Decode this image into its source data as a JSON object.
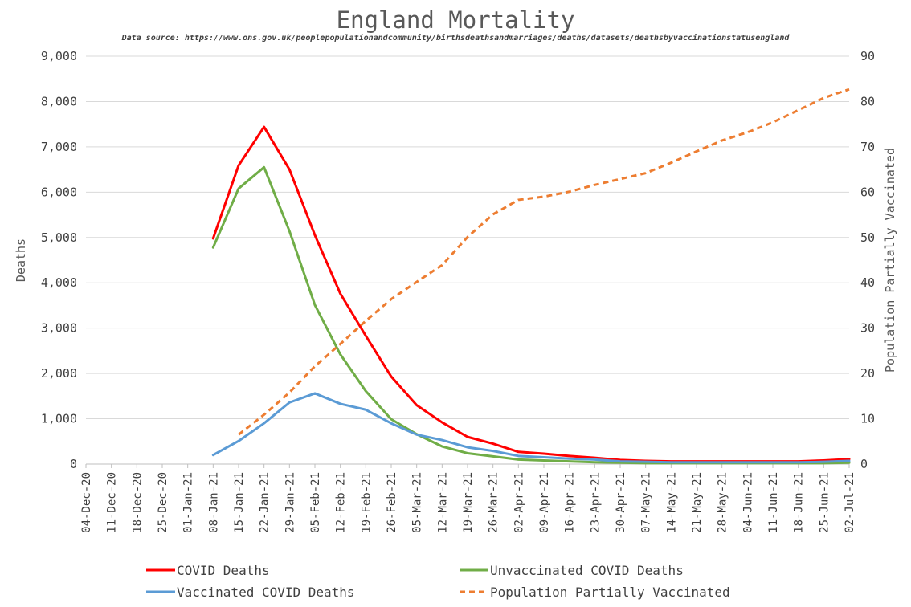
{
  "chart_data": {
    "type": "line",
    "title": "England Mortality",
    "subtitle": "Data source: https://www.ons.gov.uk/peoplepopulationandcommunity/birthsdeathsandmarriages/deaths/datasets/deathsbyvaccinationstatusengland",
    "ylabel": "Deaths",
    "y2label": "Population Partially Vaccinated",
    "ylim": [
      0,
      9000
    ],
    "y2lim": [
      0,
      90
    ],
    "yticks": [
      "0",
      "1,000",
      "2,000",
      "3,000",
      "4,000",
      "5,000",
      "6,000",
      "7,000",
      "8,000",
      "9,000"
    ],
    "y2ticks": [
      "0",
      "10",
      "20",
      "30",
      "40",
      "50",
      "60",
      "70",
      "80",
      "90"
    ],
    "categories": [
      "04-Dec-20",
      "11-Dec-20",
      "18-Dec-20",
      "25-Dec-20",
      "01-Jan-21",
      "08-Jan-21",
      "15-Jan-21",
      "22-Jan-21",
      "29-Jan-21",
      "05-Feb-21",
      "12-Feb-21",
      "19-Feb-21",
      "26-Feb-21",
      "05-Mar-21",
      "12-Mar-21",
      "19-Mar-21",
      "26-Mar-21",
      "02-Apr-21",
      "09-Apr-21",
      "16-Apr-21",
      "23-Apr-21",
      "30-Apr-21",
      "07-May-21",
      "14-May-21",
      "21-May-21",
      "28-May-21",
      "04-Jun-21",
      "11-Jun-21",
      "18-Jun-21",
      "25-Jun-21",
      "02-Jul-21"
    ],
    "series": [
      {
        "name": "COVID Deaths",
        "axis": "left",
        "color": "#ff0000",
        "dash": false,
        "values": [
          null,
          null,
          null,
          null,
          null,
          4980,
          6590,
          7440,
          6500,
          5050,
          3760,
          2830,
          1930,
          1300,
          920,
          600,
          450,
          270,
          230,
          180,
          140,
          90,
          70,
          60,
          60,
          60,
          60,
          60,
          60,
          80,
          110
        ]
      },
      {
        "name": "Unvaccinated COVID Deaths",
        "axis": "left",
        "color": "#70ad47",
        "dash": false,
        "values": [
          null,
          null,
          null,
          null,
          null,
          4780,
          6080,
          6550,
          5140,
          3510,
          2420,
          1610,
          990,
          660,
          390,
          240,
          170,
          100,
          80,
          60,
          40,
          30,
          20,
          20,
          20,
          20,
          20,
          20,
          20,
          20,
          30
        ]
      },
      {
        "name": "Vaccinated COVID Deaths",
        "axis": "left",
        "color": "#5b9bd5",
        "dash": false,
        "values": [
          null,
          null,
          null,
          null,
          null,
          200,
          510,
          900,
          1360,
          1560,
          1330,
          1200,
          900,
          650,
          530,
          370,
          290,
          180,
          150,
          120,
          100,
          60,
          50,
          40,
          40,
          40,
          40,
          40,
          40,
          50,
          70
        ]
      },
      {
        "name": "Population Partially Vaccinated",
        "axis": "right",
        "color": "#ed7d31",
        "dash": true,
        "values": [
          null,
          null,
          null,
          null,
          null,
          null,
          6.5,
          10.9,
          15.8,
          21.6,
          26.5,
          31.6,
          36.4,
          40.2,
          43.9,
          50.1,
          55.1,
          58.3,
          59.0,
          60.1,
          61.6,
          62.9,
          64.2,
          66.5,
          69.0,
          71.4,
          73.2,
          75.4,
          78.1,
          80.8,
          82.7
        ]
      }
    ],
    "legend": {
      "placement": "bottom"
    }
  }
}
